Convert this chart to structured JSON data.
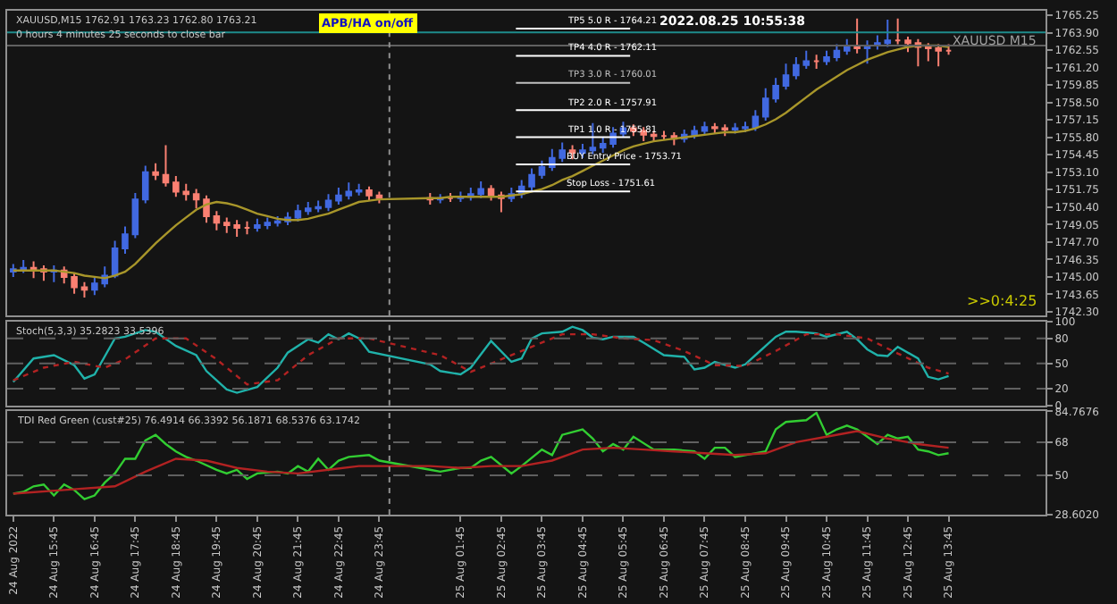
{
  "chart_data": [
    {
      "type": "candlestick",
      "title": "XAUUSD,M15 1762.91 1763.23 1762.80 1763.21",
      "subtitle": "0 hours 4 minutes 25 seconds to close bar",
      "annotations": [
        "APB/HA on/off",
        "2022.08.25 10:55:38",
        "XAUUSD M15",
        ">>0:4:25"
      ],
      "x": [
        "2022-08-24T14:45",
        "2022-08-24T15:00",
        "2022-08-24T15:15",
        "2022-08-24T15:30",
        "2022-08-24T15:45",
        "2022-08-24T16:00",
        "2022-08-24T16:15",
        "2022-08-24T16:30",
        "2022-08-24T16:45",
        "2022-08-24T17:00",
        "2022-08-24T17:15",
        "2022-08-24T17:30",
        "2022-08-24T17:45",
        "2022-08-24T18:00",
        "2022-08-24T18:15",
        "2022-08-24T18:30",
        "2022-08-24T18:45",
        "2022-08-24T19:00",
        "2022-08-24T19:15",
        "2022-08-24T19:30",
        "2022-08-24T19:45",
        "2022-08-24T20:00",
        "2022-08-24T20:15",
        "2022-08-24T20:30",
        "2022-08-24T20:45",
        "2022-08-24T21:00",
        "2022-08-24T21:15",
        "2022-08-24T21:30",
        "2022-08-24T21:45",
        "2022-08-24T22:00",
        "2022-08-24T22:15",
        "2022-08-24T22:30",
        "2022-08-24T22:45",
        "2022-08-24T23:00",
        "2022-08-24T23:15",
        "2022-08-24T23:30",
        "2022-08-24T23:45",
        "2022-08-25T01:00",
        "2022-08-25T01:15",
        "2022-08-25T01:30",
        "2022-08-25T01:45",
        "2022-08-25T02:00",
        "2022-08-25T02:15",
        "2022-08-25T02:30",
        "2022-08-25T02:45",
        "2022-08-25T03:00",
        "2022-08-25T03:15",
        "2022-08-25T03:30",
        "2022-08-25T03:45",
        "2022-08-25T04:00",
        "2022-08-25T04:15",
        "2022-08-25T04:30",
        "2022-08-25T04:45",
        "2022-08-25T05:00",
        "2022-08-25T05:15",
        "2022-08-25T05:30",
        "2022-08-25T05:45",
        "2022-08-25T06:00",
        "2022-08-25T06:15",
        "2022-08-25T06:30",
        "2022-08-25T06:45",
        "2022-08-25T07:00",
        "2022-08-25T07:15",
        "2022-08-25T07:30",
        "2022-08-25T07:45",
        "2022-08-25T08:00",
        "2022-08-25T08:15",
        "2022-08-25T08:30",
        "2022-08-25T08:45",
        "2022-08-25T09:00",
        "2022-08-25T09:15",
        "2022-08-25T09:30",
        "2022-08-25T09:45",
        "2022-08-25T10:00",
        "2022-08-25T10:15",
        "2022-08-25T10:30",
        "2022-08-25T10:45",
        "2022-08-25T11:00",
        "2022-08-25T11:15",
        "2022-08-25T11:30",
        "2022-08-25T11:45",
        "2022-08-25T12:00",
        "2022-08-25T12:15",
        "2022-08-25T12:30",
        "2022-08-25T12:45",
        "2022-08-25T13:00",
        "2022-08-25T13:15",
        "2022-08-25T13:30",
        "2022-08-25T13:45"
      ],
      "ohlc": [
        [
          1745.4,
          1746.0,
          1745.0,
          1745.6
        ],
        [
          1745.6,
          1746.3,
          1745.3,
          1745.7
        ],
        [
          1745.7,
          1746.2,
          1744.9,
          1745.6
        ],
        [
          1745.6,
          1745.9,
          1744.7,
          1745.4
        ],
        [
          1745.4,
          1745.9,
          1744.6,
          1745.5
        ],
        [
          1745.5,
          1745.8,
          1744.5,
          1745.0
        ],
        [
          1745.0,
          1745.3,
          1743.7,
          1744.2
        ],
        [
          1744.2,
          1744.6,
          1743.4,
          1744.0
        ],
        [
          1744.0,
          1745.0,
          1743.6,
          1744.5
        ],
        [
          1744.5,
          1745.8,
          1744.2,
          1745.1
        ],
        [
          1745.1,
          1747.8,
          1744.9,
          1747.2
        ],
        [
          1747.2,
          1748.9,
          1746.8,
          1748.3
        ],
        [
          1748.3,
          1751.5,
          1748.0,
          1751.0
        ],
        [
          1751.0,
          1753.6,
          1750.7,
          1753.1
        ],
        [
          1753.1,
          1753.8,
          1752.5,
          1752.9
        ],
        [
          1752.9,
          1755.2,
          1752.0,
          1752.3
        ],
        [
          1752.3,
          1752.8,
          1751.2,
          1751.6
        ],
        [
          1751.6,
          1752.2,
          1750.9,
          1751.4
        ],
        [
          1751.4,
          1751.8,
          1750.3,
          1751.0
        ],
        [
          1751.0,
          1751.3,
          1749.2,
          1749.7
        ],
        [
          1749.7,
          1750.1,
          1748.6,
          1749.2
        ],
        [
          1749.2,
          1749.6,
          1748.4,
          1749.0
        ],
        [
          1749.0,
          1749.4,
          1748.1,
          1748.8
        ],
        [
          1748.8,
          1749.3,
          1748.3,
          1748.8
        ],
        [
          1748.8,
          1749.5,
          1748.5,
          1749.0
        ],
        [
          1749.0,
          1749.6,
          1748.7,
          1749.2
        ],
        [
          1749.2,
          1749.7,
          1748.9,
          1749.3
        ],
        [
          1749.3,
          1750.0,
          1749.0,
          1749.6
        ],
        [
          1749.6,
          1750.6,
          1749.3,
          1750.1
        ],
        [
          1750.1,
          1750.8,
          1749.8,
          1750.3
        ],
        [
          1750.3,
          1750.9,
          1750.0,
          1750.4
        ],
        [
          1750.4,
          1751.4,
          1750.1,
          1750.9
        ],
        [
          1750.9,
          1751.9,
          1750.6,
          1751.3
        ],
        [
          1751.3,
          1752.3,
          1751.0,
          1751.6
        ],
        [
          1751.6,
          1752.2,
          1751.3,
          1751.7
        ],
        [
          1751.7,
          1752.0,
          1750.9,
          1751.3
        ],
        [
          1751.3,
          1751.6,
          1750.7,
          1751.1
        ],
        [
          1751.1,
          1751.5,
          1750.6,
          1751.0
        ],
        [
          1751.0,
          1751.4,
          1750.7,
          1751.1
        ],
        [
          1751.1,
          1751.5,
          1750.8,
          1751.1
        ],
        [
          1751.1,
          1751.6,
          1750.8,
          1751.2
        ],
        [
          1751.2,
          1751.9,
          1750.9,
          1751.4
        ],
        [
          1751.4,
          1752.4,
          1751.1,
          1751.8
        ],
        [
          1751.8,
          1752.1,
          1750.9,
          1751.3
        ],
        [
          1751.3,
          1751.6,
          1750.0,
          1751.1
        ],
        [
          1751.1,
          1751.9,
          1750.8,
          1751.4
        ],
        [
          1751.4,
          1752.5,
          1751.1,
          1752.0
        ],
        [
          1752.0,
          1753.4,
          1751.7,
          1752.9
        ],
        [
          1752.9,
          1754.0,
          1752.6,
          1753.5
        ],
        [
          1753.5,
          1754.9,
          1753.2,
          1754.2
        ],
        [
          1754.2,
          1755.4,
          1753.9,
          1754.8
        ],
        [
          1754.8,
          1755.2,
          1754.1,
          1754.6
        ],
        [
          1754.6,
          1755.3,
          1754.2,
          1754.8
        ],
        [
          1754.8,
          1756.9,
          1754.5,
          1755.0
        ],
        [
          1755.0,
          1755.8,
          1754.6,
          1755.3
        ],
        [
          1755.3,
          1756.6,
          1755.0,
          1756.1
        ],
        [
          1756.1,
          1757.0,
          1755.8,
          1756.5
        ],
        [
          1756.5,
          1756.8,
          1755.9,
          1756.3
        ],
        [
          1756.3,
          1756.6,
          1755.5,
          1756.0
        ],
        [
          1756.0,
          1756.3,
          1755.5,
          1755.9
        ],
        [
          1755.9,
          1756.3,
          1755.6,
          1755.9
        ],
        [
          1755.9,
          1756.2,
          1755.2,
          1755.7
        ],
        [
          1755.7,
          1756.4,
          1755.4,
          1756.0
        ],
        [
          1756.0,
          1756.7,
          1755.7,
          1756.3
        ],
        [
          1756.3,
          1757.0,
          1756.0,
          1756.6
        ],
        [
          1756.6,
          1756.9,
          1756.1,
          1756.5
        ],
        [
          1756.5,
          1756.8,
          1755.9,
          1756.4
        ],
        [
          1756.4,
          1756.9,
          1756.1,
          1756.5
        ],
        [
          1756.5,
          1757.0,
          1756.2,
          1756.6
        ],
        [
          1756.6,
          1757.9,
          1756.3,
          1757.4
        ],
        [
          1757.4,
          1759.6,
          1757.1,
          1758.8
        ],
        [
          1758.8,
          1760.4,
          1758.5,
          1759.8
        ],
        [
          1759.8,
          1761.5,
          1759.5,
          1760.6
        ],
        [
          1760.6,
          1762.0,
          1760.3,
          1761.4
        ],
        [
          1761.4,
          1762.5,
          1761.1,
          1761.7
        ],
        [
          1761.7,
          1762.2,
          1761.1,
          1761.7
        ],
        [
          1761.7,
          1762.5,
          1761.4,
          1762.0
        ],
        [
          1762.0,
          1763.0,
          1761.7,
          1762.5
        ],
        [
          1762.5,
          1763.4,
          1762.2,
          1762.8
        ],
        [
          1762.8,
          1765.0,
          1762.3,
          1762.7
        ],
        [
          1762.7,
          1763.3,
          1761.5,
          1762.9
        ],
        [
          1762.9,
          1763.7,
          1762.6,
          1763.1
        ],
        [
          1763.1,
          1764.9,
          1762.8,
          1763.3
        ],
        [
          1763.3,
          1765.0,
          1763.0,
          1763.3
        ],
        [
          1763.3,
          1763.6,
          1762.4,
          1763.1
        ],
        [
          1763.1,
          1763.4,
          1761.3,
          1762.8
        ],
        [
          1762.8,
          1763.1,
          1761.7,
          1762.7
        ],
        [
          1762.7,
          1763.0,
          1761.3,
          1762.5
        ],
        [
          1762.5,
          1763.0,
          1762.2,
          1762.5
        ]
      ],
      "colors": [
        "#4169e1",
        "#4169e1",
        "#fa8072",
        "#fa8072",
        "#4169e1",
        "#fa8072",
        "#fa8072",
        "#fa8072",
        "#4169e1",
        "#4169e1",
        "#4169e1",
        "#4169e1",
        "#4169e1",
        "#4169e1",
        "#fa8072",
        "#fa8072",
        "#fa8072",
        "#fa8072",
        "#fa8072",
        "#fa8072",
        "#fa8072",
        "#fa8072",
        "#fa8072",
        "#fa8072",
        "#4169e1",
        "#4169e1",
        "#4169e1",
        "#4169e1",
        "#4169e1",
        "#4169e1",
        "#4169e1",
        "#4169e1",
        "#4169e1",
        "#4169e1",
        "#4169e1",
        "#fa8072",
        "#fa8072",
        "#fa8072",
        "#4169e1",
        "#fa8072",
        "#4169e1",
        "#4169e1",
        "#4169e1",
        "#fa8072",
        "#fa8072",
        "#4169e1",
        "#4169e1",
        "#4169e1",
        "#4169e1",
        "#4169e1",
        "#4169e1",
        "#fa8072",
        "#4169e1",
        "#4169e1",
        "#4169e1",
        "#4169e1",
        "#4169e1",
        "#fa8072",
        "#fa8072",
        "#fa8072",
        "#fa8072",
        "#fa8072",
        "#4169e1",
        "#4169e1",
        "#4169e1",
        "#fa8072",
        "#fa8072",
        "#4169e1",
        "#4169e1",
        "#4169e1",
        "#4169e1",
        "#4169e1",
        "#4169e1",
        "#4169e1",
        "#4169e1",
        "#fa8072",
        "#4169e1",
        "#4169e1",
        "#4169e1",
        "#fa8072",
        "#4169e1",
        "#4169e1",
        "#4169e1",
        "#fa8072",
        "#fa8072",
        "#fa8072",
        "#fa8072",
        "#fa8072",
        "#fa8072"
      ],
      "series": [
        {
          "type": "line",
          "color": "#a8962a",
          "values": [
            1745.5,
            1745.5,
            1745.5,
            1745.5,
            1745.5,
            1745.4,
            1745.3,
            1745.1,
            1745.0,
            1744.9,
            1745.1,
            1745.4,
            1746.0,
            1746.8,
            1747.6,
            1748.3,
            1749.0,
            1749.6,
            1750.2,
            1750.6,
            1750.8,
            1750.7,
            1750.5,
            1750.2,
            1749.9,
            1749.7,
            1749.5,
            1749.4,
            1749.4,
            1749.5,
            1749.7,
            1749.9,
            1750.2,
            1750.5,
            1750.8,
            1750.9,
            1751.0,
            1751.1,
            1751.1,
            1751.2,
            1751.2,
            1751.2,
            1751.2,
            1751.2,
            1751.2,
            1751.3,
            1751.4,
            1751.6,
            1751.8,
            1752.1,
            1752.5,
            1752.8,
            1753.2,
            1753.6,
            1754.0,
            1754.4,
            1754.8,
            1755.1,
            1755.3,
            1755.5,
            1755.6,
            1755.7,
            1755.8,
            1755.9,
            1756.0,
            1756.1,
            1756.2,
            1756.2,
            1756.3,
            1756.5,
            1756.8,
            1757.2,
            1757.7,
            1758.3,
            1758.9,
            1759.5,
            1760.0,
            1760.5,
            1761.0,
            1761.4,
            1761.8,
            1762.1,
            1762.4,
            1762.6,
            1762.8,
            1762.9,
            1762.9,
            1762.9,
            1762.8
          ]
        }
      ],
      "ylim": [
        1742.0,
        1765.6
      ],
      "yticks": [
        {
          "value": 1742.3,
          "label": "1742.30"
        },
        1743.65,
        {
          "value": 1745,
          "label": "1745.00"
        },
        1746.35,
        {
          "value": 1747.7,
          "label": "1747.70"
        },
        1749.05,
        {
          "value": 1750.4,
          "label": "1750.40"
        },
        1751.75,
        {
          "value": 1753.1,
          "label": "1753.10"
        },
        1754.45,
        {
          "value": 1755.8,
          "label": "1755.80"
        },
        1757.15,
        {
          "value": 1758.5,
          "label": "1758.50"
        },
        1759.85,
        {
          "value": 1761.2,
          "label": "1761.20"
        },
        1762.55,
        {
          "value": 1763.9,
          "label": "1763.90"
        },
        1765.25
      ],
      "xlim": [
        "2022-08-24T14:36",
        "2022-08-25T16:08"
      ],
      "tick_labels": "y",
      "ref_lines": [
        {
          "axis": "y",
          "value": 1764.21,
          "label": "TP5 5.0 R - 1764.21",
          "color": "#ffffff"
        },
        {
          "axis": "y",
          "value": 1762.11,
          "label": "TP4 4.0 R - 1762.11",
          "color": "#ffffff"
        },
        {
          "axis": "y",
          "value": 1760.01,
          "label": "TP3 3.0 R - 1760.01",
          "color": "#c0c0c0"
        },
        {
          "axis": "y",
          "value": 1757.91,
          "label": "TP2 2.0 R - 1757.91",
          "color": "#ffffff"
        },
        {
          "axis": "y",
          "value": 1755.81,
          "label": "TP1 1.0 R - 1755.81",
          "color": "#ffffff"
        },
        {
          "axis": "y",
          "value": 1753.71,
          "label": "BUY Entry Price - 1753.71",
          "color": "#ffffff"
        },
        {
          "axis": "y",
          "value": 1751.61,
          "label": "Stop Loss - 1751.61",
          "color": "#ffffff"
        },
        {
          "axis": "y",
          "value": 1763.93,
          "color": "#1e8c8c"
        },
        {
          "axis": "y",
          "value": 1762.91,
          "color": "#606060"
        },
        {
          "axis": "x",
          "value": "2022-08-25T00:00",
          "color": "#909090",
          "line_style": "dotted"
        }
      ]
    },
    {
      "type": "line",
      "title": "Stoch(5,3,3) 35.2823 33.5396",
      "series": [
        {
          "color": "#20b2aa",
          "x": [
            "2022-08-24T14:45",
            "2022-08-24T15:15",
            "2022-08-24T15:45",
            "2022-08-24T16:15",
            "2022-08-24T16:30",
            "2022-08-24T16:45",
            "2022-08-24T17:15",
            "2022-08-24T17:30",
            "2022-08-24T18:00",
            "2022-08-24T18:15",
            "2022-08-24T18:45",
            "2022-08-24T19:15",
            "2022-08-24T19:30",
            "2022-08-24T20:00",
            "2022-08-24T20:15",
            "2022-08-24T20:45",
            "2022-08-24T21:15",
            "2022-08-24T21:30",
            "2022-08-24T22:00",
            "2022-08-24T22:15",
            "2022-08-24T22:30",
            "2022-08-24T22:45",
            "2022-08-24T23:00",
            "2022-08-24T23:15",
            "2022-08-24T23:30",
            "2022-08-25T01:00",
            "2022-08-25T01:15",
            "2022-08-25T01:45",
            "2022-08-25T02:00",
            "2022-08-25T02:30",
            "2022-08-25T03:00",
            "2022-08-25T03:15",
            "2022-08-25T03:30",
            "2022-08-25T03:45",
            "2022-08-25T04:15",
            "2022-08-25T04:30",
            "2022-08-25T04:45",
            "2022-08-25T05:00",
            "2022-08-25T05:15",
            "2022-08-25T05:30",
            "2022-08-25T06:00",
            "2022-08-25T06:15",
            "2022-08-25T06:45",
            "2022-08-25T07:15",
            "2022-08-25T07:30",
            "2022-08-25T07:45",
            "2022-08-25T08:00",
            "2022-08-25T08:30",
            "2022-08-25T08:45",
            "2022-08-25T09:00",
            "2022-08-25T09:30",
            "2022-08-25T09:45",
            "2022-08-25T10:00",
            "2022-08-25T10:30",
            "2022-08-25T10:45",
            "2022-08-25T11:15",
            "2022-08-25T11:30",
            "2022-08-25T11:45",
            "2022-08-25T12:00",
            "2022-08-25T12:15",
            "2022-08-25T12:30",
            "2022-08-25T13:00",
            "2022-08-25T13:15",
            "2022-08-25T13:30",
            "2022-08-25T13:45"
          ],
          "values": [
            28,
            56,
            60,
            48,
            32,
            37,
            80,
            82,
            90,
            88,
            71,
            60,
            41,
            19,
            15,
            22,
            45,
            63,
            79,
            75,
            85,
            79,
            86,
            80,
            64,
            49,
            41,
            37,
            45,
            77,
            52,
            56,
            80,
            86,
            88,
            94,
            90,
            81,
            79,
            82,
            82,
            75,
            60,
            58,
            43,
            45,
            52,
            45,
            49,
            60,
            82,
            88,
            88,
            86,
            82,
            88,
            79,
            67,
            60,
            59,
            70,
            56,
            34,
            31,
            35
          ]
        },
        {
          "color": "#b22222",
          "line_style": "dotted",
          "x": [
            "2022-08-24T14:45",
            "2022-08-24T15:30",
            "2022-08-24T16:15",
            "2022-08-24T17:00",
            "2022-08-24T17:30",
            "2022-08-24T18:15",
            "2022-08-24T19:00",
            "2022-08-24T19:45",
            "2022-08-24T20:30",
            "2022-08-24T21:15",
            "2022-08-24T22:00",
            "2022-08-24T22:45",
            "2022-08-24T23:30",
            "2022-08-25T01:15",
            "2022-08-25T02:00",
            "2022-08-25T02:45",
            "2022-08-25T03:30",
            "2022-08-25T04:15",
            "2022-08-25T05:00",
            "2022-08-25T05:45",
            "2022-08-25T06:30",
            "2022-08-25T07:15",
            "2022-08-25T08:00",
            "2022-08-25T08:45",
            "2022-08-25T09:30",
            "2022-08-25T10:15",
            "2022-08-25T11:00",
            "2022-08-25T11:45",
            "2022-08-25T12:30",
            "2022-08-25T13:15",
            "2022-08-25T13:45"
          ],
          "values": [
            30,
            45,
            52,
            45,
            55,
            80,
            80,
            55,
            25,
            30,
            60,
            80,
            80,
            60,
            40,
            55,
            70,
            85,
            85,
            80,
            78,
            65,
            48,
            47,
            65,
            85,
            85,
            80,
            62,
            45,
            38
          ]
        }
      ],
      "ylim": [
        0,
        100
      ],
      "yticks": [
        0,
        20,
        50,
        80,
        100
      ],
      "xlim": [
        "2022-08-24T14:36",
        "2022-08-25T16:08"
      ],
      "tick_labels": "y",
      "ref_lines": [
        {
          "axis": "y",
          "value": 20,
          "color": "#606060",
          "line_style": "dashed"
        },
        {
          "axis": "y",
          "value": 50,
          "color": "#606060",
          "line_style": "dashed"
        },
        {
          "axis": "y",
          "value": 80,
          "color": "#606060",
          "line_style": "dashed"
        },
        {
          "axis": "x",
          "value": "2022-08-25T00:00",
          "color": "#909090",
          "line_style": "dotted"
        }
      ]
    },
    {
      "type": "line",
      "title": "TDI Red Green (cust#25) 76.4914 66.3392 56.1871 68.5376 63.1742",
      "series": [
        {
          "color": "#32cd32",
          "x": [
            "2022-08-24T14:45",
            "2022-08-24T15:00",
            "2022-08-24T15:15",
            "2022-08-24T15:30",
            "2022-08-24T15:45",
            "2022-08-24T16:00",
            "2022-08-24T16:15",
            "2022-08-24T16:30",
            "2022-08-24T16:45",
            "2022-08-24T17:00",
            "2022-08-24T17:15",
            "2022-08-24T17:30",
            "2022-08-24T17:45",
            "2022-08-24T18:00",
            "2022-08-24T18:15",
            "2022-08-24T18:30",
            "2022-08-24T18:45",
            "2022-08-24T19:00",
            "2022-08-24T19:15",
            "2022-08-24T19:45",
            "2022-08-24T20:00",
            "2022-08-24T20:15",
            "2022-08-24T20:30",
            "2022-08-24T20:45",
            "2022-08-24T21:15",
            "2022-08-24T21:30",
            "2022-08-24T21:45",
            "2022-08-24T22:00",
            "2022-08-24T22:15",
            "2022-08-24T22:30",
            "2022-08-24T22:45",
            "2022-08-24T23:00",
            "2022-08-24T23:30",
            "2022-08-24T23:45",
            "2022-08-25T01:00",
            "2022-08-25T01:15",
            "2022-08-25T01:45",
            "2022-08-25T02:00",
            "2022-08-25T02:15",
            "2022-08-25T02:30",
            "2022-08-25T03:00",
            "2022-08-25T03:15",
            "2022-08-25T03:45",
            "2022-08-25T04:00",
            "2022-08-25T04:15",
            "2022-08-25T04:45",
            "2022-08-25T05:00",
            "2022-08-25T05:15",
            "2022-08-25T05:30",
            "2022-08-25T05:45",
            "2022-08-25T06:00",
            "2022-08-25T06:30",
            "2022-08-25T07:00",
            "2022-08-25T07:30",
            "2022-08-25T07:45",
            "2022-08-25T08:00",
            "2022-08-25T08:15",
            "2022-08-25T08:30",
            "2022-08-25T08:45",
            "2022-08-25T09:15",
            "2022-08-25T09:30",
            "2022-08-25T09:45",
            "2022-08-25T10:15",
            "2022-08-25T10:30",
            "2022-08-25T10:45",
            "2022-08-25T11:00",
            "2022-08-25T11:15",
            "2022-08-25T11:30",
            "2022-08-25T12:00",
            "2022-08-25T12:15",
            "2022-08-25T12:30",
            "2022-08-25T12:45",
            "2022-08-25T13:00",
            "2022-08-25T13:15",
            "2022-08-25T13:30",
            "2022-08-25T13:45"
          ],
          "values": [
            40,
            41,
            44,
            45,
            39,
            45,
            42,
            37,
            39,
            46,
            51,
            59,
            59,
            69,
            72,
            67,
            63,
            60,
            58,
            53,
            51,
            53,
            48,
            51,
            52,
            51,
            55,
            52,
            59,
            53,
            58,
            60,
            61,
            58,
            53,
            52,
            54,
            54,
            58,
            60,
            51,
            55,
            64,
            61,
            72,
            75,
            70,
            63,
            67,
            64,
            71,
            64,
            64,
            63,
            59,
            65,
            65,
            60,
            61,
            63,
            75,
            79,
            80,
            84,
            72,
            75,
            77,
            75,
            67,
            72,
            70,
            71,
            64,
            63,
            61,
            62
          ]
        },
        {
          "color": "#b22222",
          "x": [
            "2022-08-24T14:45",
            "2022-08-24T16:00",
            "2022-08-24T17:15",
            "2022-08-24T18:00",
            "2022-08-24T18:45",
            "2022-08-24T19:30",
            "2022-08-24T20:15",
            "2022-08-24T21:00",
            "2022-08-24T21:45",
            "2022-08-24T22:30",
            "2022-08-24T23:15",
            "2022-08-25T01:00",
            "2022-08-25T01:45",
            "2022-08-25T02:30",
            "2022-08-25T03:15",
            "2022-08-25T04:00",
            "2022-08-25T04:45",
            "2022-08-25T05:30",
            "2022-08-25T06:15",
            "2022-08-25T07:00",
            "2022-08-25T07:45",
            "2022-08-25T08:30",
            "2022-08-25T09:15",
            "2022-08-25T10:00",
            "2022-08-25T10:45",
            "2022-08-25T11:30",
            "2022-08-25T12:15",
            "2022-08-25T13:00",
            "2022-08-25T13:45"
          ],
          "values": [
            40,
            42,
            44,
            52,
            59,
            58,
            54,
            52,
            51,
            53,
            55,
            55,
            54,
            55,
            55,
            58,
            64,
            65,
            64,
            63,
            62,
            61,
            62,
            68,
            71,
            74,
            70,
            67,
            65
          ]
        }
      ],
      "ylim": [
        28.602,
        84.7676
      ],
      "yticks": [
        {
          "value": 28.602,
          "label": "28.6020"
        },
        50,
        68,
        84.7676
      ],
      "xlim": [
        "2022-08-24T14:36",
        "2022-08-25T16:08"
      ],
      "xticks": [
        {
          "value": "2022-08-24T14:45",
          "label": "24 Aug 2022"
        },
        {
          "value": "2022-08-24T15:45",
          "label": "24 Aug 15:45"
        },
        {
          "value": "2022-08-24T16:45",
          "label": "24 Aug 16:45"
        },
        {
          "value": "2022-08-24T17:45",
          "label": "24 Aug 17:45"
        },
        {
          "value": "2022-08-24T18:45",
          "label": "24 Aug 18:45"
        },
        {
          "value": "2022-08-24T19:45",
          "label": "24 Aug 19:45"
        },
        {
          "value": "2022-08-24T20:45",
          "label": "24 Aug 20:45"
        },
        {
          "value": "2022-08-24T21:45",
          "label": "24 Aug 21:45"
        },
        {
          "value": "2022-08-24T22:45",
          "label": "24 Aug 22:45"
        },
        {
          "value": "2022-08-24T23:45",
          "label": "24 Aug 23:45"
        },
        {
          "value": "2022-08-25T01:45",
          "label": "25 Aug 01:45"
        },
        {
          "value": "2022-08-25T02:45",
          "label": "25 Aug 02:45"
        },
        {
          "value": "2022-08-25T03:45",
          "label": "25 Aug 03:45"
        },
        {
          "value": "2022-08-25T04:45",
          "label": "25 Aug 04:45"
        },
        {
          "value": "2022-08-25T05:45",
          "label": "25 Aug 05:45"
        },
        {
          "value": "2022-08-25T06:45",
          "label": "25 Aug 06:45"
        },
        {
          "value": "2022-08-25T07:45",
          "label": "25 Aug 07:45"
        },
        {
          "value": "2022-08-25T08:45",
          "label": "25 Aug 08:45"
        },
        {
          "value": "2022-08-25T09:45",
          "label": "25 Aug 09:45"
        },
        {
          "value": "2022-08-25T10:45",
          "label": "25 Aug 10:45"
        },
        {
          "value": "2022-08-25T11:45",
          "label": "25 Aug 11:45"
        },
        {
          "value": "2022-08-25T12:45",
          "label": "25 Aug 12:45"
        },
        {
          "value": "2022-08-25T13:45",
          "label": "25 Aug 13:45"
        }
      ],
      "ref_lines": [
        {
          "axis": "y",
          "value": 50,
          "color": "#606060",
          "line_style": "dashed"
        },
        {
          "axis": "y",
          "value": 68,
          "color": "#606060",
          "line_style": "dashed"
        },
        {
          "axis": "x",
          "value": "2022-08-25T00:00",
          "color": "#909090",
          "line_style": "dotted"
        }
      ]
    }
  ]
}
